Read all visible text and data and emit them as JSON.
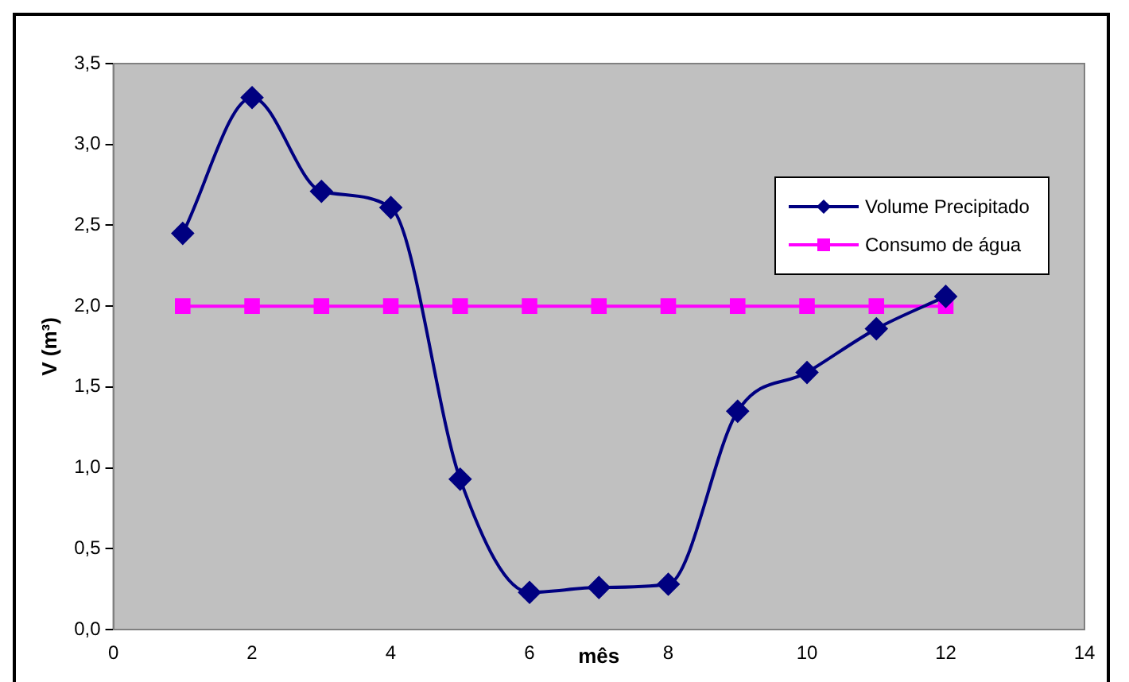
{
  "chart_data": {
    "type": "line",
    "xlabel": "mês",
    "ylabel": "V (m³)",
    "x": [
      1,
      2,
      3,
      4,
      5,
      6,
      7,
      8,
      9,
      10,
      11,
      12
    ],
    "series": [
      {
        "name": "Volume Precipitado",
        "color": "#000080",
        "marker": "diamond",
        "values": [
          2.45,
          3.29,
          2.71,
          2.61,
          0.93,
          0.23,
          0.26,
          0.28,
          1.35,
          1.59,
          1.86,
          2.06
        ]
      },
      {
        "name": "Consumo de água",
        "color": "#ff00ff",
        "marker": "square",
        "values": [
          2,
          2,
          2,
          2,
          2,
          2,
          2,
          2,
          2,
          2,
          2,
          2
        ]
      }
    ],
    "xlim": [
      0,
      14
    ],
    "xticks": [
      0,
      2,
      4,
      6,
      8,
      10,
      12,
      14
    ],
    "ylim": [
      0,
      3.5
    ],
    "yticks": [
      {
        "value": 0,
        "label": "0,0"
      },
      {
        "value": 0.5,
        "label": "0,5"
      },
      {
        "value": 1,
        "label": "1,0"
      },
      {
        "value": 1.5,
        "label": "1,5"
      },
      {
        "value": 2,
        "label": "2,0"
      },
      {
        "value": 2.5,
        "label": "2,5"
      },
      {
        "value": 3,
        "label": "3,0"
      },
      {
        "value": 3.5,
        "label": "3,5"
      }
    ],
    "grid": false,
    "legend": "right"
  }
}
